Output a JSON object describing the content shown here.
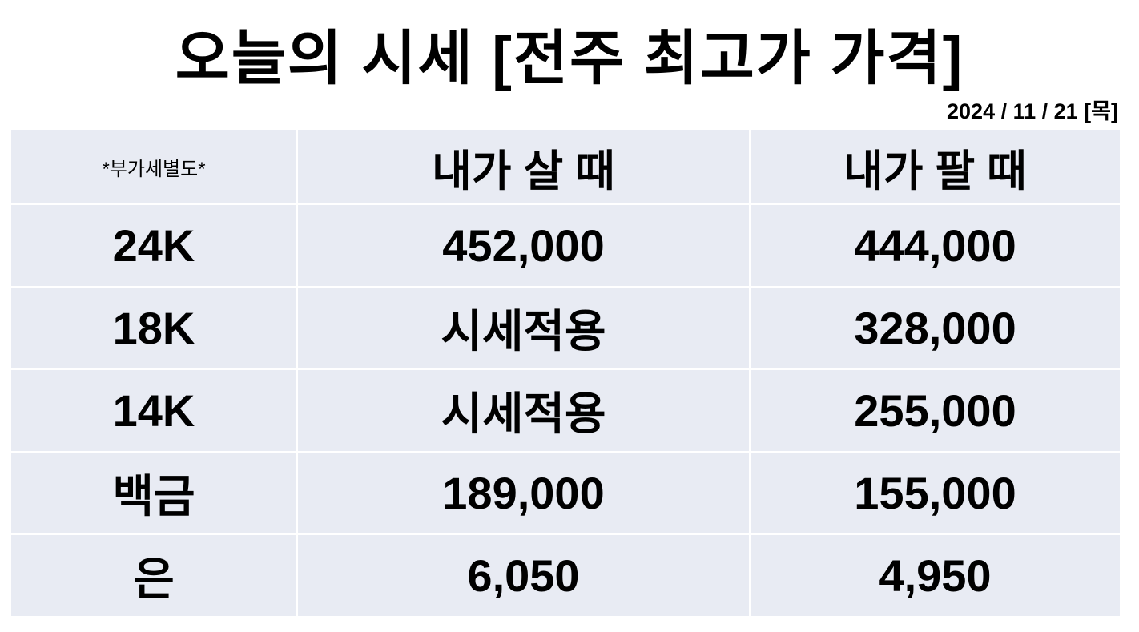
{
  "header": {
    "title": "오늘의 시세 [전주 최고가 가격]",
    "date": "2024 / 11 / 21 [목]"
  },
  "table": {
    "columns": [
      "*부가세별도*",
      "내가 살 때",
      "내가 팔 때"
    ],
    "rows": [
      [
        "24K",
        "452,000",
        "444,000"
      ],
      [
        "18K",
        "시세적용",
        "328,000"
      ],
      [
        "14K",
        "시세적용",
        "255,000"
      ],
      [
        "백금",
        "189,000",
        "155,000"
      ],
      [
        "은",
        "6,050",
        "4,950"
      ]
    ]
  }
}
